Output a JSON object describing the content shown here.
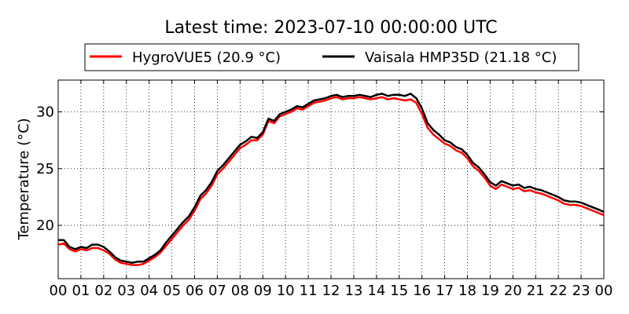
{
  "chart_data": {
    "type": "line",
    "title": "Latest time: 2023-07-10 00:00:00 UTC",
    "xlabel": "",
    "ylabel": "Temperature (°C)",
    "xlim": [
      0,
      24
    ],
    "ylim": [
      15.3,
      32.8
    ],
    "xticks": [
      "00",
      "01",
      "02",
      "03",
      "04",
      "05",
      "06",
      "07",
      "08",
      "09",
      "10",
      "11",
      "12",
      "13",
      "14",
      "15",
      "16",
      "17",
      "18",
      "19",
      "20",
      "21",
      "22",
      "23",
      "00"
    ],
    "yticks": [
      20,
      25,
      30
    ],
    "grid": true,
    "legend_position": "top-center",
    "x": [
      0,
      0.25,
      0.5,
      0.75,
      1,
      1.25,
      1.5,
      1.75,
      2,
      2.25,
      2.5,
      2.75,
      3,
      3.25,
      3.5,
      3.75,
      4,
      4.25,
      4.5,
      4.75,
      5,
      5.25,
      5.5,
      5.75,
      6,
      6.25,
      6.5,
      6.75,
      7,
      7.25,
      7.5,
      7.75,
      8,
      8.25,
      8.5,
      8.75,
      9,
      9.25,
      9.5,
      9.75,
      10,
      10.25,
      10.5,
      10.75,
      11,
      11.25,
      11.5,
      11.75,
      12,
      12.25,
      12.5,
      12.75,
      13,
      13.25,
      13.5,
      13.75,
      14,
      14.25,
      14.5,
      14.75,
      15,
      15.25,
      15.5,
      15.75,
      16,
      16.25,
      16.5,
      16.75,
      17,
      17.25,
      17.5,
      17.75,
      18,
      18.25,
      18.5,
      18.75,
      19,
      19.25,
      19.5,
      19.75,
      20,
      20.25,
      20.5,
      20.75,
      21,
      21.25,
      21.5,
      21.75,
      22,
      22.25,
      22.5,
      22.75,
      23,
      23.25,
      23.5,
      23.75,
      24
    ],
    "series": [
      {
        "name": "HygroVUE5 (20.9 °C)",
        "color": "#ff0000",
        "values": [
          18.3,
          18.4,
          17.9,
          17.7,
          17.9,
          17.8,
          18.0,
          18.0,
          17.8,
          17.5,
          17.0,
          16.7,
          16.6,
          16.5,
          16.5,
          16.6,
          16.9,
          17.2,
          17.6,
          18.2,
          18.8,
          19.4,
          20.0,
          20.5,
          21.3,
          22.3,
          22.8,
          23.5,
          24.5,
          25.0,
          25.6,
          26.2,
          26.8,
          27.1,
          27.5,
          27.5,
          28.0,
          29.2,
          29.0,
          29.6,
          29.8,
          30.0,
          30.3,
          30.2,
          30.5,
          30.8,
          30.9,
          31.0,
          31.2,
          31.3,
          31.1,
          31.2,
          31.2,
          31.3,
          31.2,
          31.1,
          31.2,
          31.3,
          31.1,
          31.2,
          31.1,
          31.0,
          31.1,
          30.8,
          29.8,
          28.6,
          28.0,
          27.6,
          27.2,
          27.0,
          26.6,
          26.4,
          25.9,
          25.2,
          24.8,
          24.2,
          23.5,
          23.2,
          23.6,
          23.4,
          23.2,
          23.3,
          23.0,
          23.1,
          22.9,
          22.8,
          22.6,
          22.4,
          22.2,
          21.9,
          21.8,
          21.8,
          21.7,
          21.5,
          21.3,
          21.1,
          20.9
        ]
      },
      {
        "name": "Vaisala HMP35D (21.18 °C)",
        "color": "#000000",
        "values": [
          18.7,
          18.7,
          18.1,
          17.9,
          18.1,
          18.0,
          18.3,
          18.3,
          18.1,
          17.7,
          17.2,
          16.9,
          16.8,
          16.7,
          16.8,
          16.8,
          17.1,
          17.4,
          17.8,
          18.5,
          19.1,
          19.7,
          20.3,
          20.8,
          21.6,
          22.6,
          23.1,
          23.8,
          24.8,
          25.3,
          25.9,
          26.5,
          27.1,
          27.4,
          27.8,
          27.7,
          28.2,
          29.4,
          29.2,
          29.8,
          30.0,
          30.2,
          30.5,
          30.4,
          30.7,
          31.0,
          31.1,
          31.2,
          31.4,
          31.5,
          31.3,
          31.4,
          31.4,
          31.5,
          31.4,
          31.3,
          31.5,
          31.6,
          31.4,
          31.5,
          31.5,
          31.4,
          31.6,
          31.2,
          30.3,
          29.0,
          28.4,
          28.0,
          27.5,
          27.3,
          26.9,
          26.7,
          26.2,
          25.5,
          25.1,
          24.5,
          23.8,
          23.5,
          23.9,
          23.7,
          23.5,
          23.6,
          23.3,
          23.4,
          23.2,
          23.1,
          22.9,
          22.7,
          22.5,
          22.2,
          22.1,
          22.1,
          22.0,
          21.8,
          21.6,
          21.4,
          21.18
        ]
      }
    ]
  }
}
